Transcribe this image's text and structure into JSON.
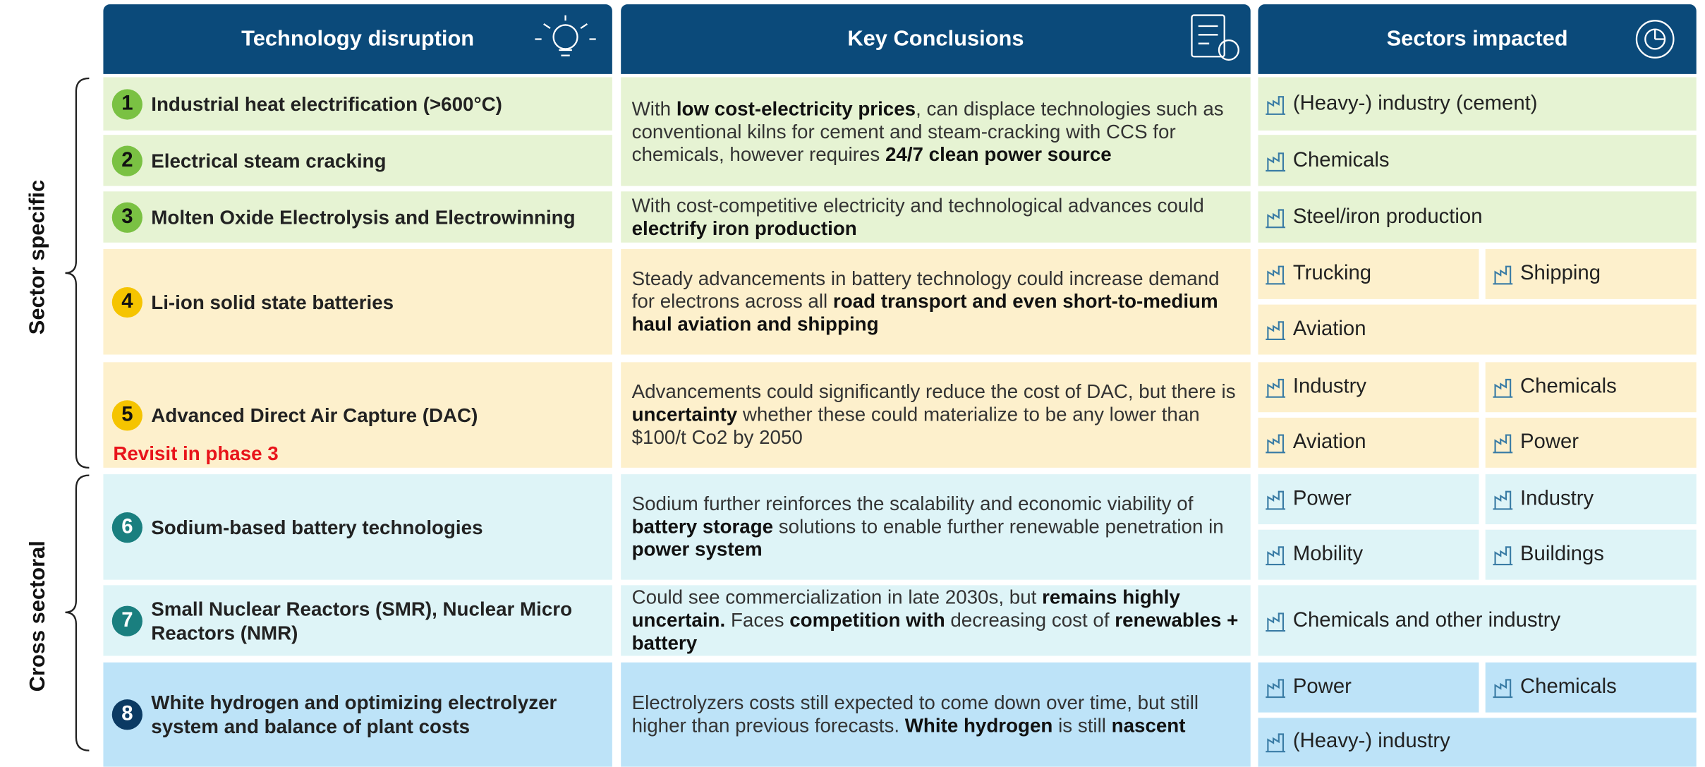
{
  "headers": [
    "Technology disruption",
    "Key Conclusions",
    "Sectors impacted"
  ],
  "groups": [
    "Sector specific",
    "Cross sectoral"
  ],
  "rows": [
    {
      "number": "1",
      "title": "Industrial heat electrification (>600°C)",
      "color": "#e6f3d3",
      "badge": "#7ac143",
      "sectors": [
        [
          "(Heavy-) industry (cement)"
        ]
      ]
    },
    {
      "number": "2",
      "title": "Electrical steam cracking",
      "color": "#e6f3d3",
      "badge": "#7ac143",
      "sectors": [
        [
          "Chemicals"
        ]
      ]
    },
    {
      "number": "3",
      "title": "Molten Oxide Electrolysis and Electrowinning",
      "color": "#e6f3d3",
      "badge": "#7ac143",
      "sectors": [
        [
          "Steel/iron production"
        ]
      ]
    },
    {
      "number": "4",
      "title": "Li-ion solid state batteries",
      "color": "#fdf0cc",
      "badge": "#f5c400",
      "sectors": [
        [
          "Trucking",
          "Shipping"
        ],
        [
          "Aviation"
        ]
      ]
    },
    {
      "number": "5",
      "title": "Advanced Direct Air Capture (DAC)",
      "note": "Revisit in phase 3",
      "color": "#fdf0cc",
      "badge": "#f5c400",
      "sectors": [
        [
          "Industry",
          "Chemicals"
        ],
        [
          "Aviation",
          "Power"
        ]
      ]
    },
    {
      "number": "6",
      "title": "Sodium-based battery technologies",
      "color": "#def4f7",
      "badge": "#1a7f7f",
      "sectors": [
        [
          "Power",
          "Industry"
        ],
        [
          "Mobility",
          "Buildings"
        ]
      ]
    },
    {
      "number": "7",
      "title": "Small Nuclear Reactors (SMR), Nuclear Micro Reactors (NMR)",
      "color": "#def4f7",
      "badge": "#1a7f7f",
      "sectors": [
        [
          "Chemicals and other industry"
        ]
      ]
    },
    {
      "number": "8",
      "title": "White hydrogen and optimizing electrolyzer system and balance of plant costs",
      "color": "#bde3f8",
      "badge": "#0b3a63",
      "sectors": [
        [
          "Power",
          "Chemicals"
        ],
        [
          "(Heavy-) industry"
        ]
      ]
    }
  ],
  "conclusions": [
    [
      {
        "text": "With "
      },
      {
        "text": "low cost-electricity prices",
        "bold": true
      },
      {
        "text": ", can displace technologies such as conventional kilns for cement and steam-cracking with CCS for chemicals, however requires "
      },
      {
        "text": "24/7 clean power source",
        "bold": true
      }
    ],
    [
      {
        "text": "With cost-competitive electricity and technological advances could "
      },
      {
        "text": "electrify iron production",
        "bold": true
      }
    ],
    [
      {
        "text": "Steady advancements in battery technology could increase demand for electrons across all "
      },
      {
        "text": "road transport and even short-to-medium haul aviation and shipping",
        "bold": true
      }
    ],
    [
      {
        "text": "Advancements could significantly reduce the cost of DAC, but there is "
      },
      {
        "text": "uncertainty",
        "bold": true
      },
      {
        "text": " whether these could materialize to be any lower than $100/t Co2 by 2050"
      }
    ],
    [
      {
        "text": "Sodium further reinforces the scalability and economic viability of "
      },
      {
        "text": "battery storage",
        "bold": true
      },
      {
        "text": " solutions to enable further renewable penetration in "
      },
      {
        "text": "power system",
        "bold": true
      }
    ],
    [
      {
        "text": "Could see commercialization in late 2030s, but "
      },
      {
        "text": "remains highly uncertain.",
        "bold": true
      },
      {
        "text": " Faces "
      },
      {
        "text": "competition with",
        "bold": true
      },
      {
        "text": " decreasing cost of "
      },
      {
        "text": "renewables + battery",
        "bold": true
      }
    ],
    [
      {
        "text": "Electrolyzers costs still expected to come down over time, but still higher than previous forecasts. "
      },
      {
        "text": "White hydrogen",
        "bold": true
      },
      {
        "text": " is still "
      },
      {
        "text": "nascent",
        "bold": true
      }
    ]
  ]
}
